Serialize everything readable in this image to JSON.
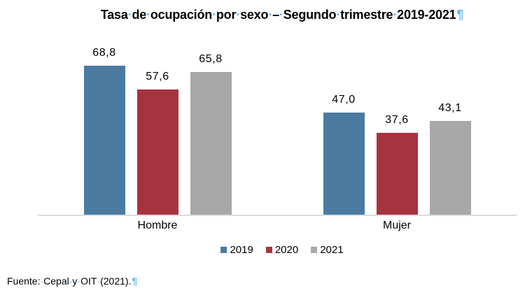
{
  "page": {
    "background": "#ffffff",
    "formatting_marks_color": "#5cb8f0"
  },
  "title": {
    "text": "Tasa de ocupación por sexo – Segundo trimestre 2019-2021",
    "pilcrow": "¶"
  },
  "source": {
    "text": "Fuente: Cepal y OIT (2021).",
    "pilcrow": "¶"
  },
  "chart_data": {
    "type": "bar",
    "title": "Tasa de ocupación por sexo – Segundo trimestre 2019-2021",
    "categories": [
      "Hombre",
      "Mujer"
    ],
    "series": [
      {
        "name": "2019",
        "color": "#4b7ba0",
        "values": [
          68.8,
          47.0
        ],
        "labels": [
          "68,8",
          "47,0"
        ]
      },
      {
        "name": "2020",
        "color": "#a6343f",
        "values": [
          57.6,
          37.6
        ],
        "labels": [
          "57,6",
          "37,6"
        ]
      },
      {
        "name": "2021",
        "color": "#a8a8a8",
        "values": [
          65.8,
          43.1
        ],
        "labels": [
          "65,8",
          "43,1"
        ]
      }
    ],
    "ylim": [
      0,
      80
    ],
    "xlabel": "",
    "ylabel": "",
    "gridlines": false,
    "y_axis_visible": false,
    "legend_position": "bottom",
    "axis_line_color": "#dbdbdb",
    "decimal_separator": ","
  }
}
